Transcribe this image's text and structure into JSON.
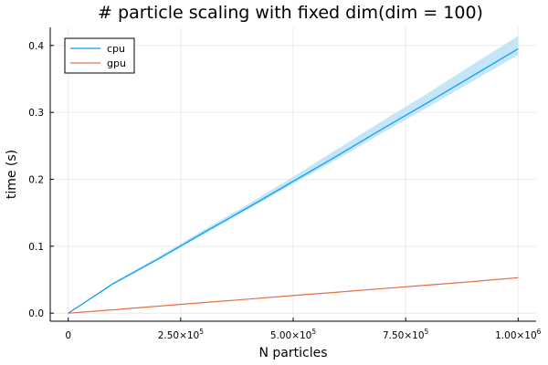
{
  "chart_data": {
    "type": "line",
    "title": "# particle scaling with fixed dim(dim = 100)",
    "xlabel": "N particles",
    "ylabel": "time (s)",
    "xlim": [
      0,
      1000000
    ],
    "ylim": [
      0,
      0.42
    ],
    "grid": true,
    "legend_position": "top-left",
    "x_ticks": [
      {
        "value": 0,
        "mantissa": "0",
        "exponent": ""
      },
      {
        "value": 250000,
        "mantissa": "2.50×10",
        "exponent": "5"
      },
      {
        "value": 500000,
        "mantissa": "5.00×10",
        "exponent": "5"
      },
      {
        "value": 750000,
        "mantissa": "7.50×10",
        "exponent": "5"
      },
      {
        "value": 1000000,
        "mantissa": "1.00×10",
        "exponent": "6"
      }
    ],
    "y_ticks": [
      {
        "value": 0.0,
        "label": "0.0"
      },
      {
        "value": 0.1,
        "label": "0.1"
      },
      {
        "value": 0.2,
        "label": "0.2"
      },
      {
        "value": 0.3,
        "label": "0.3"
      },
      {
        "value": 0.4,
        "label": "0.4"
      }
    ],
    "x": [
      1,
      100000,
      200000,
      300000,
      400000,
      500000,
      600000,
      700000,
      800000,
      900000,
      1000000
    ],
    "series": [
      {
        "name": "cpu",
        "color": "#009AFA",
        "band_color": "#C4E6F8",
        "values": [
          0.0,
          0.044,
          0.081,
          0.12,
          0.158,
          0.197,
          0.236,
          0.276,
          0.315,
          0.355,
          0.395
        ],
        "upper": [
          0.0,
          0.046,
          0.084,
          0.124,
          0.163,
          0.204,
          0.246,
          0.288,
          0.329,
          0.372,
          0.414
        ],
        "lower": [
          0.0,
          0.043,
          0.079,
          0.117,
          0.155,
          0.193,
          0.231,
          0.27,
          0.308,
          0.347,
          0.386
        ]
      },
      {
        "name": "gpu",
        "color": "#E26F46",
        "values": [
          0.0,
          0.005,
          0.0105,
          0.0158,
          0.021,
          0.0263,
          0.0315,
          0.0368,
          0.042,
          0.0473,
          0.053
        ]
      }
    ]
  }
}
